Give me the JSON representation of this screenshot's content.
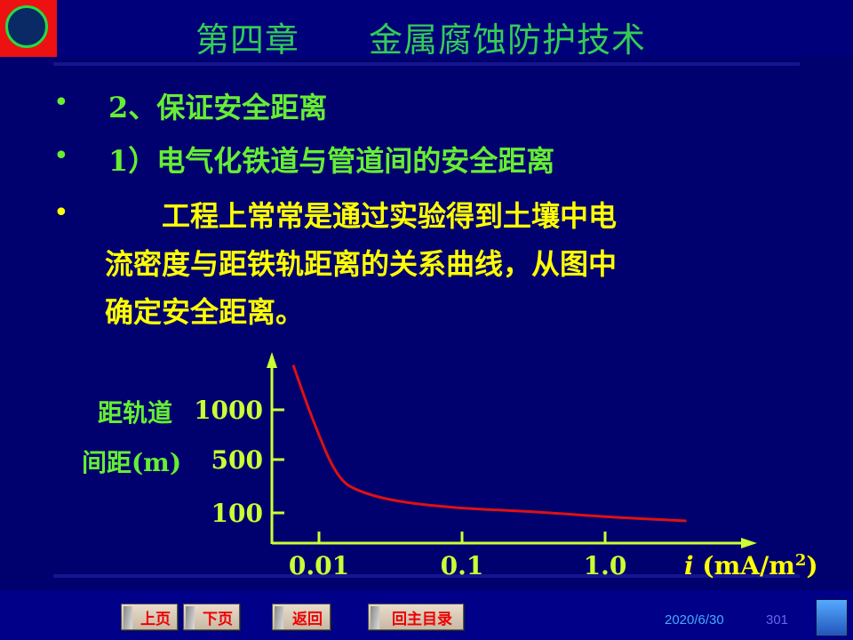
{
  "header": {
    "title": "第四章　　金属腐蚀防护技术",
    "logo": "CHINA UNIVERSITY OF PETROLEUM 1953"
  },
  "bullets": [
    {
      "marker": "•",
      "text": "2、保证安全距离",
      "color": "#66ee33"
    },
    {
      "marker": "•",
      "text": "1）电气化铁道与管道间的安全距离",
      "color": "#66ee33"
    },
    {
      "marker": "•",
      "lines": [
        "　　工程上常常是通过实验得到土壤中电",
        "流密度与距铁轨距离的关系曲线，从图中",
        "确定安全距离。"
      ],
      "color": "#ffff00"
    }
  ],
  "chart_data": {
    "type": "line",
    "ylabel_lines": [
      "距轨道",
      "间距(m)"
    ],
    "xlabel_italic": "i",
    "xlabel_unit": " (mA/m",
    "xlabel_sup": "2",
    "xlabel_end": ")",
    "x_scale": "log",
    "x_ticks": [
      "0.01",
      "0.1",
      "1.0"
    ],
    "y_ticks": [
      "1000",
      "500",
      "100"
    ],
    "series": [
      {
        "x": [
          0.0066,
          0.009,
          0.0135,
          0.02,
          0.037,
          0.1,
          0.32,
          1.0,
          3.7
        ],
        "y": [
          1450,
          900,
          350,
          250,
          180,
          133,
          110,
          70,
          40
        ],
        "color": "#dd1111"
      }
    ],
    "grid": false
  },
  "nav": {
    "prev": "上页",
    "next": "下页",
    "back": "返回",
    "home": "回主目录"
  },
  "footer": {
    "date": "2020/6/30",
    "page": "301"
  }
}
